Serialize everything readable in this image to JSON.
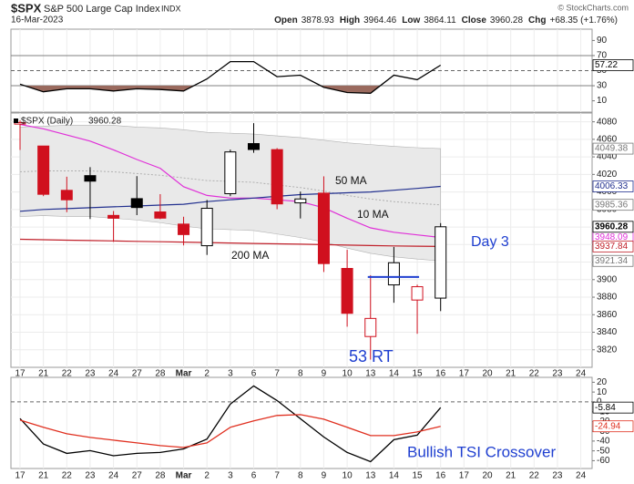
{
  "header": {
    "symbol": "$SPX",
    "name": "S&P 500 Large Cap Index",
    "exchange": "INDX",
    "date": "16-Mar-2023",
    "copyright": "© StockCharts.com",
    "quote_labels": [
      "Open",
      "High",
      "Low",
      "Close",
      "Chg"
    ],
    "change": "+68.35 (+1.76%)"
  },
  "chart_data": [
    {
      "type": "line",
      "ylim": [
        -5,
        105
      ],
      "yticks": [
        90,
        70,
        50,
        30,
        10
      ],
      "reference_lines": [
        70,
        30
      ],
      "midline": 50,
      "fill_below": 30,
      "fill_color": "#9a6a5e",
      "series": [
        {
          "color": "#000000",
          "values": [
            32,
            22,
            26,
            26,
            23,
            26,
            25,
            23,
            39,
            62,
            62,
            42,
            44,
            28,
            21,
            20,
            44,
            38,
            57.22,
            null,
            null,
            null,
            null,
            null,
            null
          ]
        }
      ]
    },
    {
      "type": "candlestick",
      "legend": "$SPX (Daily)",
      "categories": [
        "17",
        "21",
        "22",
        "23",
        "24",
        "27",
        "28",
        "Mar",
        "2",
        "3",
        "6",
        "7",
        "8",
        "9",
        "10",
        "13",
        "14",
        "15",
        "16",
        "17",
        "20",
        "21",
        "22",
        "23",
        "24"
      ],
      "open": [
        4077.39,
        4052.35,
        4001.83,
        4018.6,
        3973.24,
        3992.36,
        3977.19,
        3963.34,
        3938.68,
        3998.02,
        4055.15,
        4048.26,
        3987.55,
        3998.66,
        3912.77,
        3835.12,
        3894.01,
        3876.74,
        3878.93,
        null,
        null,
        null,
        null,
        null,
        null
      ],
      "high": [
        4081.51,
        4052.35,
        4017.37,
        4028.3,
        3978.25,
        4018.05,
        3997.5,
        3971.73,
        3990.84,
        4048.29,
        4078.49,
        4050,
        4000.41,
        4017.81,
        3934.05,
        3905.05,
        3937.29,
        3894.26,
        3964.46,
        null,
        null,
        null,
        null,
        null,
        null
      ],
      "low": [
        4047.95,
        3995.19,
        3976.9,
        3969.19,
        3943.08,
        3973.55,
        3968.98,
        3939.05,
        3928.16,
        3995.17,
        4044.61,
        3980.31,
        3969.76,
        3908.7,
        3846.32,
        3808.86,
        3873.63,
        3838.24,
        3864.11,
        null,
        null,
        null,
        null,
        null,
        null
      ],
      "close": [
        4079.09,
        3997.34,
        3991.05,
        4012.32,
        3970.04,
        3982.24,
        3970.15,
        3951.39,
        3981.35,
        4045.64,
        4048.42,
        3986.37,
        3992.01,
        3918.32,
        3861.59,
        3855.76,
        3919.29,
        3891.93,
        3960.28,
        null,
        null,
        null,
        null,
        null,
        null
      ],
      "colors": [
        "#d0101e",
        "#d0101e",
        "#d0101e",
        "#000000",
        "#d0101e",
        "#000000",
        "#d0101e",
        "#d0101e",
        "#000000",
        "#000000",
        "#000000",
        "#d0101e",
        "#000000",
        "#d0101e",
        "#d0101e",
        "#d0101e",
        "#000000",
        "#d0101e",
        "#000000",
        null,
        null,
        null,
        null,
        null,
        null
      ],
      "ylim": [
        3800,
        4090
      ],
      "yticks": [
        3820,
        3840,
        3860,
        3880,
        3900,
        3920,
        3940,
        3960,
        3980,
        4000,
        4020,
        4040,
        4060,
        4080
      ],
      "grid": true,
      "band": {
        "color": "#e9e9e9",
        "line_color": "#b0b0b0",
        "upper": [
          4074,
          4075,
          4076,
          4076,
          4076,
          4074,
          4073,
          4071,
          4068,
          4067,
          4066,
          4064,
          4062,
          4059,
          4056,
          4054,
          4052,
          4050.5,
          4049.38,
          null,
          null,
          null,
          null,
          null,
          null
        ],
        "middle": [
          4023,
          4024,
          4024,
          4024,
          4023,
          4021,
          4019,
          4016,
          4013,
          4012,
          4011,
          4008,
          4005,
          4001,
          3996,
          3992,
          3989,
          3987,
          3985.36,
          null,
          null,
          null,
          null,
          null,
          null
        ],
        "lower": [
          3972,
          3973,
          3972,
          3972,
          3970,
          3968,
          3965,
          3961,
          3958,
          3957,
          3956,
          3952,
          3948,
          3943,
          3936,
          3930,
          3926,
          3923.5,
          3921.34,
          null,
          null,
          null,
          null,
          null,
          null
        ]
      },
      "series": [
        {
          "name": "10 MA",
          "color": "#e030d8",
          "values": [
            4077,
            4072,
            4065,
            4058,
            4048,
            4037,
            4027,
            4006,
            3996,
            3993,
            3993,
            3991,
            3989,
            3982,
            3970,
            3959,
            3954,
            3951,
            3948.09,
            null,
            null,
            null,
            null,
            null,
            null
          ]
        },
        {
          "name": "50 MA",
          "color": "#22308f",
          "values": [
            3978,
            3980,
            3981,
            3982,
            3983,
            3984,
            3985,
            3986,
            3989,
            3991,
            3993,
            3995,
            3997,
            3998,
            3999,
            4000,
            4002,
            4004,
            4006.33,
            null,
            null,
            null,
            null,
            null,
            null
          ]
        },
        {
          "name": "200 MA",
          "color": "#c0202a",
          "values": [
            3946,
            3945.5,
            3945,
            3944.6,
            3944.2,
            3943.7,
            3943.2,
            3942.8,
            3942.3,
            3941.8,
            3941.3,
            3940.8,
            3940.4,
            3939.9,
            3939.4,
            3938.9,
            3938.5,
            3938.1,
            3937.84,
            null,
            null,
            null,
            null,
            null,
            null
          ]
        }
      ],
      "level": {
        "value": 3903,
        "color": "#1f3fd0"
      },
      "annotations": [
        "Day 3",
        "53 RT"
      ]
    },
    {
      "type": "line",
      "ylim": [
        -68,
        25
      ],
      "yticks": [
        20,
        10,
        0,
        -10,
        -20,
        -30,
        -40,
        -50,
        -60
      ],
      "midline": 0,
      "series": [
        {
          "color": "#000000",
          "values": [
            -17,
            -43,
            -52.6,
            -49.8,
            -55,
            -52.6,
            -51.6,
            -48,
            -38,
            -2.3,
            16.3,
            1.4,
            -17.2,
            -35.8,
            -51.6,
            -61,
            -38.6,
            -34,
            -5.84,
            null,
            null,
            null,
            null,
            null,
            null
          ]
        },
        {
          "color": "#e03020",
          "values": [
            -18.6,
            -26,
            -32.6,
            -36.3,
            -39.1,
            -41.9,
            -44.7,
            -46.5,
            -41.9,
            -26,
            -19.5,
            -13.9,
            -13,
            -17.7,
            -26,
            -34.4,
            -34.4,
            -30.7,
            -24.94,
            null,
            null,
            null,
            null,
            null,
            null
          ]
        }
      ],
      "annotations": [
        "Bullish TSI Crossover"
      ]
    }
  ]
}
